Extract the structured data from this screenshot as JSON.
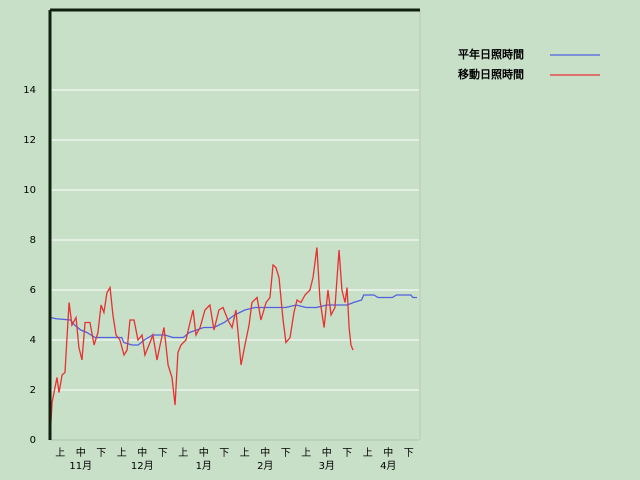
{
  "chart_data": {
    "type": "line",
    "xlim": [
      0,
      18
    ],
    "ylim": [
      0,
      17.2
    ],
    "yticks": [
      0,
      2,
      4,
      6,
      8,
      10,
      12,
      14
    ],
    "grid": true,
    "legend": "top-right",
    "dekad_labels": [
      "上",
      "中",
      "下",
      "上",
      "中",
      "下",
      "上",
      "中",
      "下",
      "上",
      "中",
      "下",
      "上",
      "中",
      "下",
      "上",
      "中",
      "下"
    ],
    "month_labels": [
      "11月",
      "12月",
      "1月",
      "2月",
      "3月",
      "4月"
    ],
    "series": [
      {
        "name": "平年日照時間",
        "color": "#5060e0",
        "x": [
          0,
          0.02,
          0.3,
          1.0,
          1.2,
          1.5,
          1.8,
          2.2,
          3.5,
          3.6,
          4.0,
          4.3,
          4.6,
          5.0,
          5.6,
          6.0,
          6.5,
          6.8,
          7.5,
          8.0,
          8.5,
          9.0,
          9.5,
          10.0,
          11.5,
          12.0,
          12.5,
          13.0,
          13.5,
          14.5,
          14.8,
          15.2,
          15.3,
          15.8,
          16.0,
          16.7,
          16.9,
          17.6,
          17.7,
          17.9
        ],
        "values": [
          0,
          4.9,
          4.85,
          4.8,
          4.6,
          4.4,
          4.3,
          4.1,
          4.1,
          3.9,
          3.8,
          3.8,
          4.0,
          4.2,
          4.2,
          4.1,
          4.1,
          4.3,
          4.5,
          4.5,
          4.7,
          5.0,
          5.2,
          5.3,
          5.3,
          5.4,
          5.3,
          5.3,
          5.4,
          5.4,
          5.5,
          5.6,
          5.8,
          5.8,
          5.7,
          5.7,
          5.8,
          5.8,
          5.7,
          5.7
        ]
      },
      {
        "name": "移動日照時間",
        "color": "#e83030",
        "x": [
          0,
          0.1,
          0.34,
          0.44,
          0.59,
          0.73,
          0.93,
          1.07,
          1.27,
          1.41,
          1.56,
          1.71,
          1.95,
          2.15,
          2.34,
          2.49,
          2.63,
          2.78,
          2.93,
          3.07,
          3.22,
          3.41,
          3.61,
          3.76,
          3.9,
          4.1,
          4.29,
          4.49,
          4.63,
          4.83,
          5.02,
          5.22,
          5.37,
          5.56,
          5.76,
          5.95,
          6.1,
          6.24,
          6.39,
          6.63,
          6.83,
          6.98,
          7.12,
          7.32,
          7.56,
          7.8,
          8.0,
          8.24,
          8.44,
          8.68,
          8.88,
          9.07,
          9.32,
          9.51,
          9.71,
          9.85,
          10.1,
          10.29,
          10.54,
          10.73,
          10.88,
          11.02,
          11.17,
          11.37,
          11.51,
          11.71,
          11.9,
          12.05,
          12.24,
          12.44,
          12.68,
          12.83,
          13.02,
          13.17,
          13.37,
          13.56,
          13.71,
          13.9,
          14.1,
          14.24,
          14.39,
          14.49,
          14.59,
          14.68,
          14.78
        ],
        "values": [
          0,
          1.5,
          2.5,
          1.9,
          2.6,
          2.7,
          5.5,
          4.6,
          4.9,
          3.7,
          3.2,
          4.7,
          4.7,
          3.8,
          4.3,
          5.4,
          5.1,
          5.9,
          6.1,
          5.0,
          4.2,
          4.0,
          3.4,
          3.6,
          4.8,
          4.8,
          4.0,
          4.2,
          3.4,
          3.8,
          4.2,
          3.2,
          3.8,
          4.5,
          3.0,
          2.5,
          1.4,
          3.5,
          3.8,
          4.0,
          4.7,
          5.2,
          4.2,
          4.5,
          5.2,
          5.4,
          4.4,
          5.2,
          5.3,
          4.8,
          4.5,
          5.2,
          3.0,
          3.8,
          4.6,
          5.5,
          5.7,
          4.8,
          5.5,
          5.7,
          7.0,
          6.9,
          6.5,
          4.8,
          3.9,
          4.1,
          5.1,
          5.6,
          5.5,
          5.8,
          6.0,
          6.5,
          7.7,
          5.6,
          4.5,
          6.0,
          5.0,
          5.3,
          7.6,
          6.0,
          5.5,
          6.1,
          4.5,
          3.8,
          3.6
        ]
      }
    ]
  }
}
